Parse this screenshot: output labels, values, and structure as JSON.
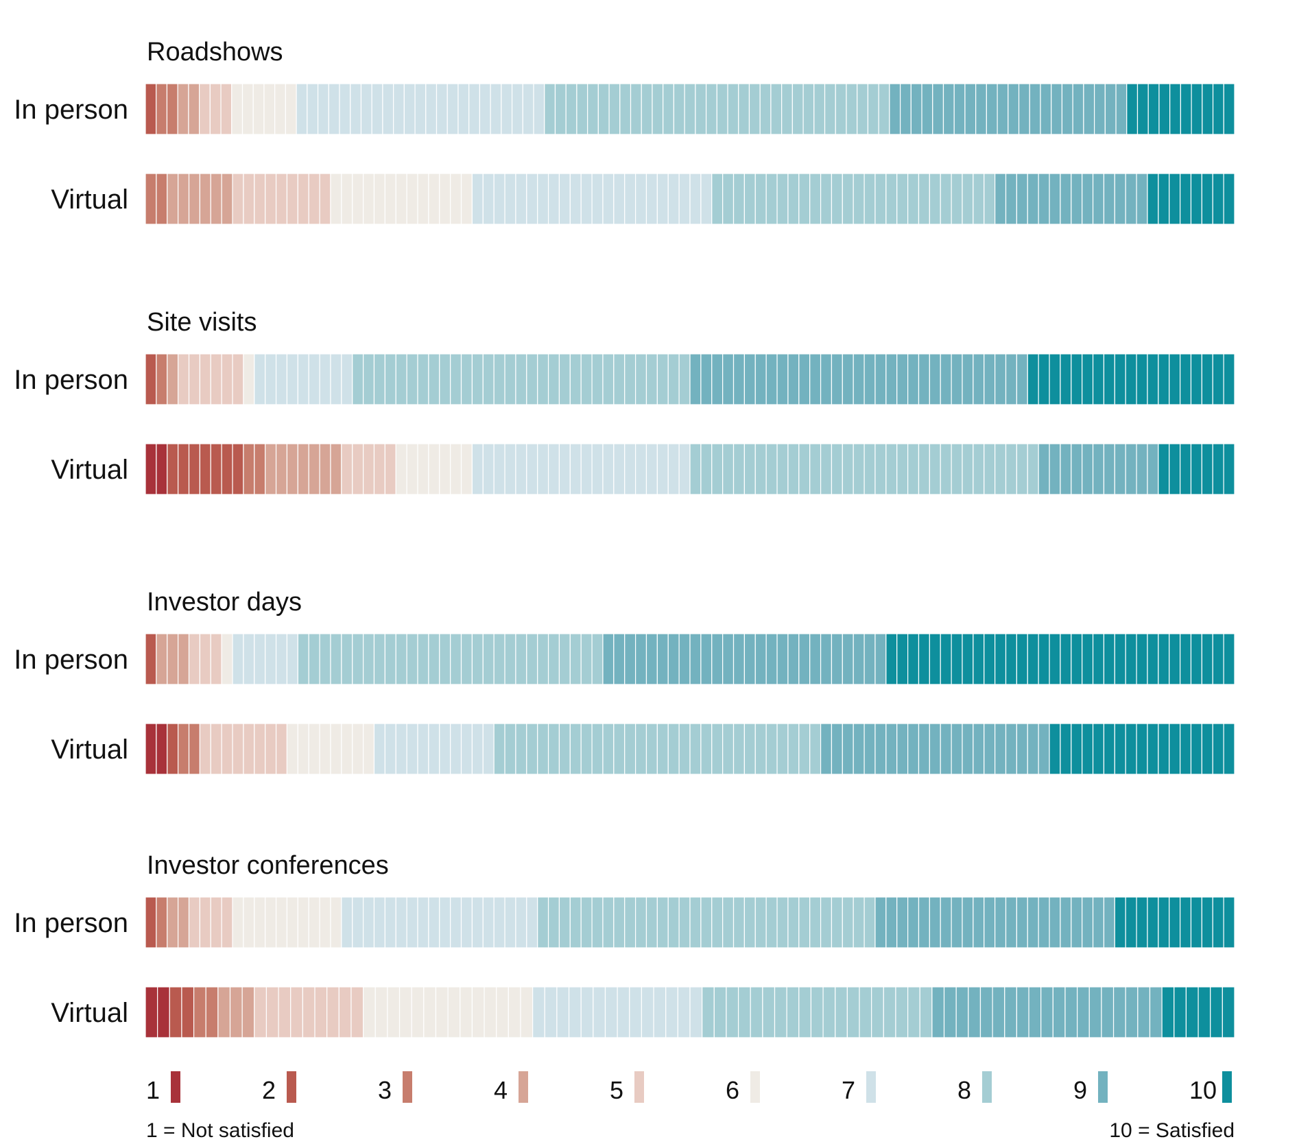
{
  "chart_data": {
    "type": "bar",
    "colors": {
      "1": "#a8323a",
      "2": "#b95a4f",
      "3": "#c77d6d",
      "4": "#d6a596",
      "5": "#e8cbc2",
      "6": "#efebe5",
      "7": "#cfe1e8",
      "8": "#a4cdd3",
      "9": "#73b2bf",
      "10": "#0e8f9d"
    },
    "groups": [
      {
        "title": "Roadshows",
        "rows": [
          {
            "label": "In person",
            "counts": [
              0,
              1,
              2,
              2,
              3,
              6,
              23,
              32,
              22,
              10
            ]
          },
          {
            "label": "Virtual",
            "counts": [
              0,
              0,
              2,
              6,
              9,
              13,
              22,
              26,
              14,
              8
            ]
          }
        ]
      },
      {
        "title": "Site visits",
        "rows": [
          {
            "label": "In person",
            "counts": [
              0,
              1,
              1,
              1,
              6,
              1,
              9,
              31,
              31,
              19
            ]
          },
          {
            "label": "Virtual",
            "counts": [
              2,
              7,
              2,
              7,
              5,
              7,
              20,
              32,
              11,
              7
            ]
          }
        ]
      },
      {
        "title": "Investor days",
        "rows": [
          {
            "label": "In person",
            "counts": [
              0,
              1,
              0,
              3,
              3,
              1,
              6,
              28,
              26,
              32
            ]
          },
          {
            "label": "Virtual",
            "counts": [
              2,
              1,
              2,
              0,
              8,
              8,
              11,
              30,
              21,
              17
            ]
          }
        ]
      },
      {
        "title": "Investor conferences",
        "rows": [
          {
            "label": "In person",
            "counts": [
              0,
              1,
              1,
              2,
              4,
              10,
              18,
              31,
              22,
              11
            ]
          },
          {
            "label": "Virtual",
            "counts": [
              2,
              2,
              2,
              3,
              9,
              14,
              14,
              19,
              19,
              6
            ]
          }
        ]
      }
    ],
    "legend": {
      "items": [
        "1",
        "2",
        "3",
        "4",
        "5",
        "6",
        "7",
        "8",
        "9",
        "10"
      ],
      "left_note": "1 = Not satisfied",
      "right_note": "10 = Satisfied"
    }
  }
}
